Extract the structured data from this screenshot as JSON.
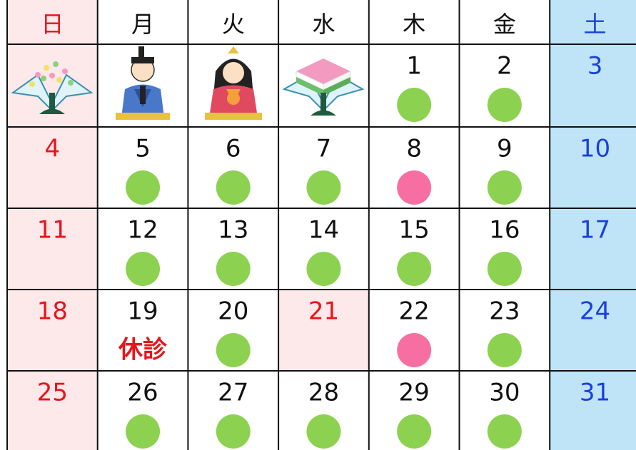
{
  "header": {
    "weekdays": [
      "日",
      "月",
      "火",
      "水",
      "木",
      "金",
      "土"
    ]
  },
  "calendar": {
    "weeks": [
      [
        null,
        null,
        null,
        null,
        1,
        2,
        3
      ],
      [
        4,
        5,
        6,
        7,
        8,
        9,
        10
      ],
      [
        11,
        12,
        13,
        14,
        15,
        16,
        17
      ],
      [
        18,
        19,
        20,
        21,
        22,
        23,
        24
      ],
      [
        25,
        26,
        27,
        28,
        29,
        30,
        31
      ]
    ],
    "closed_label": "休診"
  }
}
